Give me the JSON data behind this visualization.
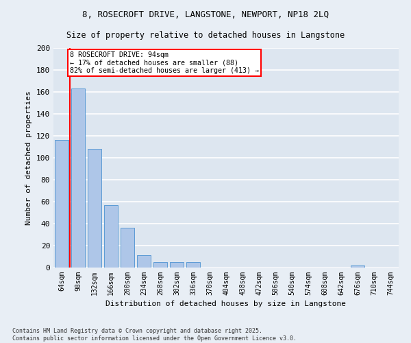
{
  "title_line1": "8, ROSECROFT DRIVE, LANGSTONE, NEWPORT, NP18 2LQ",
  "title_line2": "Size of property relative to detached houses in Langstone",
  "xlabel": "Distribution of detached houses by size in Langstone",
  "ylabel": "Number of detached properties",
  "bar_color": "#aec6e8",
  "bar_edge_color": "#5b9bd5",
  "background_color": "#dde6f0",
  "grid_color": "#ffffff",
  "categories": [
    "64sqm",
    "98sqm",
    "132sqm",
    "166sqm",
    "200sqm",
    "234sqm",
    "268sqm",
    "302sqm",
    "336sqm",
    "370sqm",
    "404sqm",
    "438sqm",
    "472sqm",
    "506sqm",
    "540sqm",
    "574sqm",
    "608sqm",
    "642sqm",
    "676sqm",
    "710sqm",
    "744sqm"
  ],
  "values": [
    116,
    163,
    108,
    57,
    36,
    11,
    5,
    5,
    5,
    0,
    0,
    0,
    0,
    0,
    0,
    0,
    0,
    0,
    2,
    0,
    0
  ],
  "annotation_title": "8 ROSECROFT DRIVE: 94sqm",
  "annotation_line2": "← 17% of detached houses are smaller (88)",
  "annotation_line3": "82% of semi-detached houses are larger (413) →",
  "vline_color": "red",
  "ylim": [
    0,
    200
  ],
  "yticks": [
    0,
    20,
    40,
    60,
    80,
    100,
    120,
    140,
    160,
    180,
    200
  ],
  "footer_line1": "Contains HM Land Registry data © Crown copyright and database right 2025.",
  "footer_line2": "Contains public sector information licensed under the Open Government Licence v3.0."
}
